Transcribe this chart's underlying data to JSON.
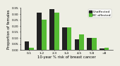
{
  "categories": [
    "0-1",
    "1-2",
    "2-3",
    "3-4",
    "4-5",
    "5-8",
    ">8"
  ],
  "unaffected": [
    0.07,
    0.31,
    0.34,
    0.19,
    0.09,
    0.1,
    0.01
  ],
  "affected": [
    0.02,
    0.25,
    0.31,
    0.19,
    0.13,
    0.1,
    0.02
  ],
  "color_unaffected": "#222222",
  "color_affected": "#55bb33",
  "xlabel": "10-year % risk of breast cancer",
  "ylabel": "Proportion of females",
  "ylim": [
    0,
    0.35
  ],
  "yticks": [
    0.0,
    0.05,
    0.1,
    0.15,
    0.2,
    0.25,
    0.3,
    0.35
  ],
  "legend_unaffected": "Unaffected",
  "legend_affected": "BC affected",
  "axis_fontsize": 3.8,
  "tick_fontsize": 3.2,
  "legend_fontsize": 3.2,
  "bar_width": 0.38,
  "background_color": "#eeeee4"
}
